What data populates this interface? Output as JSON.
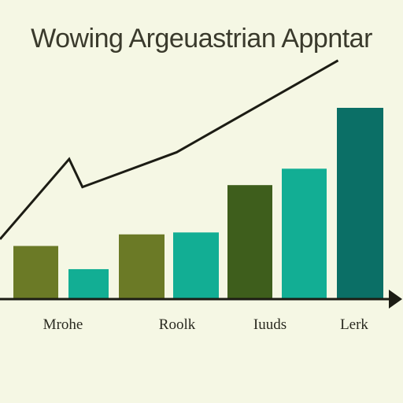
{
  "chart_data": {
    "type": "bar",
    "title": "Wowing Argeuastrian Appntar",
    "xlabel": "",
    "ylabel": "",
    "ylim": [
      0,
      220
    ],
    "categories": [
      "Mrohe",
      "",
      "Roolk",
      "",
      "Iuuds",
      "",
      "Lerk"
    ],
    "tick_labels": [
      {
        "text": "Mrohe"
      },
      {
        "text": "Roolk"
      },
      {
        "text": "Iuuds"
      },
      {
        "text": "Lerk"
      }
    ],
    "values": [
      55,
      31,
      67,
      69,
      118,
      135,
      198
    ],
    "colors": [
      "#6b7a26",
      "#12ae94",
      "#6b7a26",
      "#12ae94",
      "#3e5e1c",
      "#12ae94",
      "#0b6f66"
    ],
    "trend_line": [
      {
        "x": 0,
        "y": 62
      },
      {
        "x": 1.05,
        "y": 145
      },
      {
        "x": 1.3,
        "y": 116
      },
      {
        "x": 3.05,
        "y": 152
      },
      {
        "x": 6.0,
        "y": 247
      }
    ],
    "grid": false,
    "legend": "none"
  }
}
